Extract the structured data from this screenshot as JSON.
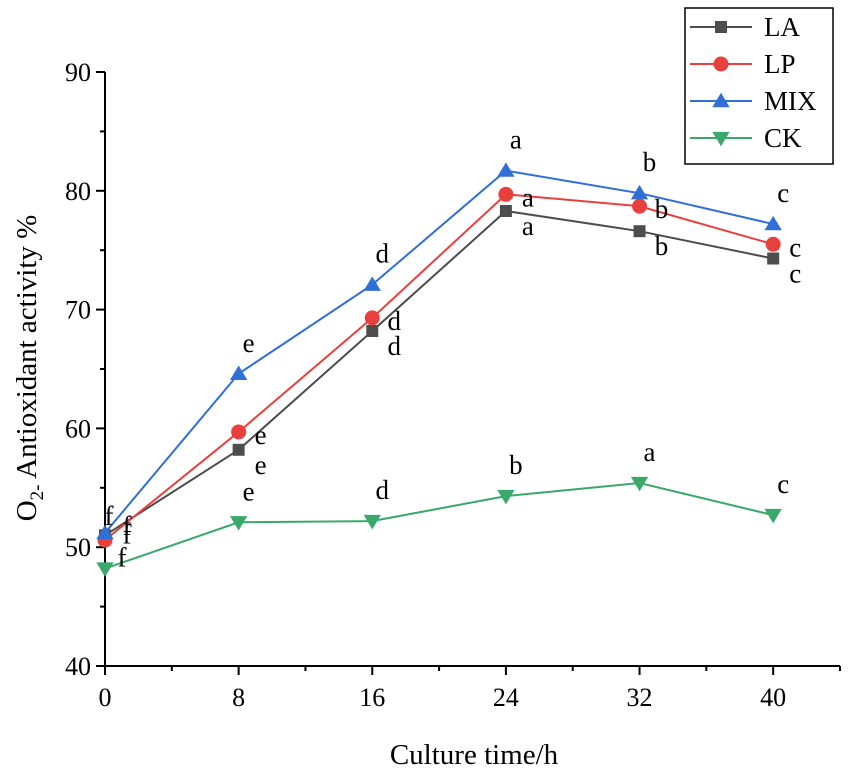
{
  "chart_data": {
    "type": "line",
    "xlabel": "Culture time/h",
    "ylabel_main": "O",
    "ylabel_sub": "2-",
    "ylabel_rest": " Antioxidant activity %",
    "x": [
      0,
      8,
      16,
      24,
      32,
      40
    ],
    "xlim": [
      0,
      44
    ],
    "ylim": [
      40,
      90
    ],
    "xticks": [
      0,
      8,
      16,
      24,
      32,
      40
    ],
    "yticks": [
      40,
      50,
      60,
      70,
      80,
      90
    ],
    "grid": false,
    "legend_position": "top-right",
    "series": [
      {
        "name": "LA",
        "color": "#4d4d4d",
        "marker": "square",
        "values": [
          51.0,
          58.2,
          68.2,
          78.3,
          76.6,
          74.3
        ],
        "labels": [
          "f",
          "e",
          "d",
          "a",
          "b",
          "c"
        ]
      },
      {
        "name": "LP",
        "color": "#e8403c",
        "marker": "circle",
        "values": [
          50.6,
          59.7,
          69.3,
          79.7,
          78.7,
          75.5
        ],
        "labels": [
          "f",
          "e",
          "d",
          "a",
          "b",
          "c"
        ]
      },
      {
        "name": "MIX",
        "color": "#2f6fd6",
        "marker": "triangle-up",
        "values": [
          51.2,
          64.6,
          72.1,
          81.7,
          79.8,
          77.2
        ],
        "labels": [
          "f",
          "e",
          "d",
          "a",
          "b",
          "c"
        ]
      },
      {
        "name": "CK",
        "color": "#3aa86b",
        "marker": "triangle-down",
        "values": [
          48.2,
          52.1,
          52.2,
          54.3,
          55.4,
          52.7
        ],
        "labels": [
          "f",
          "e",
          "d",
          "b",
          "a",
          "c"
        ]
      }
    ]
  }
}
